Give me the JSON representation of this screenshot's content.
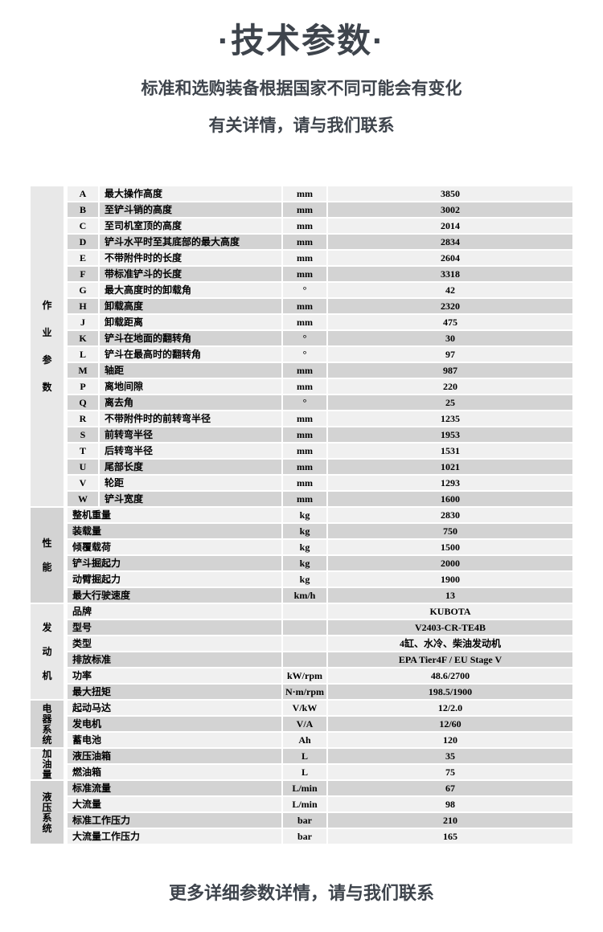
{
  "page": {
    "title": "·技术参数·",
    "subtitle_line1": "标准和选购装备根据国家不同可能会有变化",
    "subtitle_line2": "有关详情，请与我们联系",
    "footer_note": "更多详细参数详情，请与我们联系"
  },
  "colors": {
    "heading_text": "#3e444c",
    "row_light": "#f0f0f0",
    "row_dark": "#d3d3d3",
    "category_light": "#e8e8e8",
    "category_dark": "#d3d3d3",
    "table_text": "#000000"
  },
  "spec_table": {
    "sections": [
      {
        "category": "作业参数",
        "rows": [
          {
            "code": "A",
            "label": "最大操作高度",
            "unit": "mm",
            "value": "3850"
          },
          {
            "code": "B",
            "label": "至铲斗销的高度",
            "unit": "mm",
            "value": "3002"
          },
          {
            "code": "C",
            "label": "至司机室顶的高度",
            "unit": "mm",
            "value": "2014"
          },
          {
            "code": "D",
            "label": "铲斗水平时至其底部的最大高度",
            "unit": "mm",
            "value": "2834"
          },
          {
            "code": "E",
            "label": "不带附件时的长度",
            "unit": "mm",
            "value": "2604"
          },
          {
            "code": "F",
            "label": "带标准铲斗的长度",
            "unit": "mm",
            "value": "3318"
          },
          {
            "code": "G",
            "label": "最大高度时的卸载角",
            "unit": "°",
            "value": "42"
          },
          {
            "code": "H",
            "label": "卸载高度",
            "unit": "mm",
            "value": "2320"
          },
          {
            "code": "J",
            "label": "卸载距离",
            "unit": "mm",
            "value": "475"
          },
          {
            "code": "K",
            "label": "铲斗在地面的翻转角",
            "unit": "°",
            "value": "30"
          },
          {
            "code": "L",
            "label": "铲斗在最高时的翻转角",
            "unit": "°",
            "value": "97"
          },
          {
            "code": "M",
            "label": "轴距",
            "unit": "mm",
            "value": "987"
          },
          {
            "code": "P",
            "label": "离地间隙",
            "unit": "mm",
            "value": "220"
          },
          {
            "code": "Q",
            "label": "离去角",
            "unit": "°",
            "value": "25"
          },
          {
            "code": "R",
            "label": "不带附件时的前转弯半径",
            "unit": "mm",
            "value": "1235"
          },
          {
            "code": "S",
            "label": "前转弯半径",
            "unit": "mm",
            "value": "1953"
          },
          {
            "code": "T",
            "label": "后转弯半径",
            "unit": "mm",
            "value": "1531"
          },
          {
            "code": "U",
            "label": "尾部长度",
            "unit": "mm",
            "value": "1021"
          },
          {
            "code": "V",
            "label": "轮距",
            "unit": "mm",
            "value": "1293"
          },
          {
            "code": "W",
            "label": "铲斗宽度",
            "unit": "mm",
            "value": "1600"
          }
        ]
      },
      {
        "category": "性能",
        "rows": [
          {
            "label": "整机重量",
            "unit": "kg",
            "value": "2830"
          },
          {
            "label": "装载量",
            "unit": "kg",
            "value": "750"
          },
          {
            "label": "倾覆载荷",
            "unit": "kg",
            "value": "1500"
          },
          {
            "label": "铲斗掘起力",
            "unit": "kg",
            "value": "2000"
          },
          {
            "label": "动臂掘起力",
            "unit": "kg",
            "value": "1900"
          },
          {
            "label": "最大行驶速度",
            "unit": "km/h",
            "value": "13"
          }
        ]
      },
      {
        "category": "发动机",
        "rows": [
          {
            "label": "品牌",
            "unit": "",
            "value": "KUBOTA"
          },
          {
            "label": "型号",
            "unit": "",
            "value": "V2403-CR-TE4B"
          },
          {
            "label": "类型",
            "unit": "",
            "value": "4缸、水冷、柴油发动机"
          },
          {
            "label": "排放标准",
            "unit": "",
            "value": "EPA Tier4F / EU Stage V"
          },
          {
            "label": "功率",
            "unit": "kW/rpm",
            "value": "48.6/2700"
          },
          {
            "label": "最大扭矩",
            "unit": "N·m/rpm",
            "value": "198.5/1900"
          }
        ]
      },
      {
        "category": "电器系统",
        "rows": [
          {
            "label": "起动马达",
            "unit": "V/kW",
            "value": "12/2.0"
          },
          {
            "label": "发电机",
            "unit": "V/A",
            "value": "12/60"
          },
          {
            "label": "蓄电池",
            "unit": "Ah",
            "value": "120"
          }
        ]
      },
      {
        "category": "加油量",
        "rows": [
          {
            "label": "液压油箱",
            "unit": "L",
            "value": "35"
          },
          {
            "label": "燃油箱",
            "unit": "L",
            "value": "75"
          }
        ]
      },
      {
        "category": "液压系统",
        "rows": [
          {
            "label": "标准流量",
            "unit": "L/min",
            "value": "67"
          },
          {
            "label": "大流量",
            "unit": "L/min",
            "value": "98"
          },
          {
            "label": "标准工作压力",
            "unit": "bar",
            "value": "210"
          },
          {
            "label": "大流量工作压力",
            "unit": "bar",
            "value": "165"
          }
        ]
      }
    ]
  }
}
